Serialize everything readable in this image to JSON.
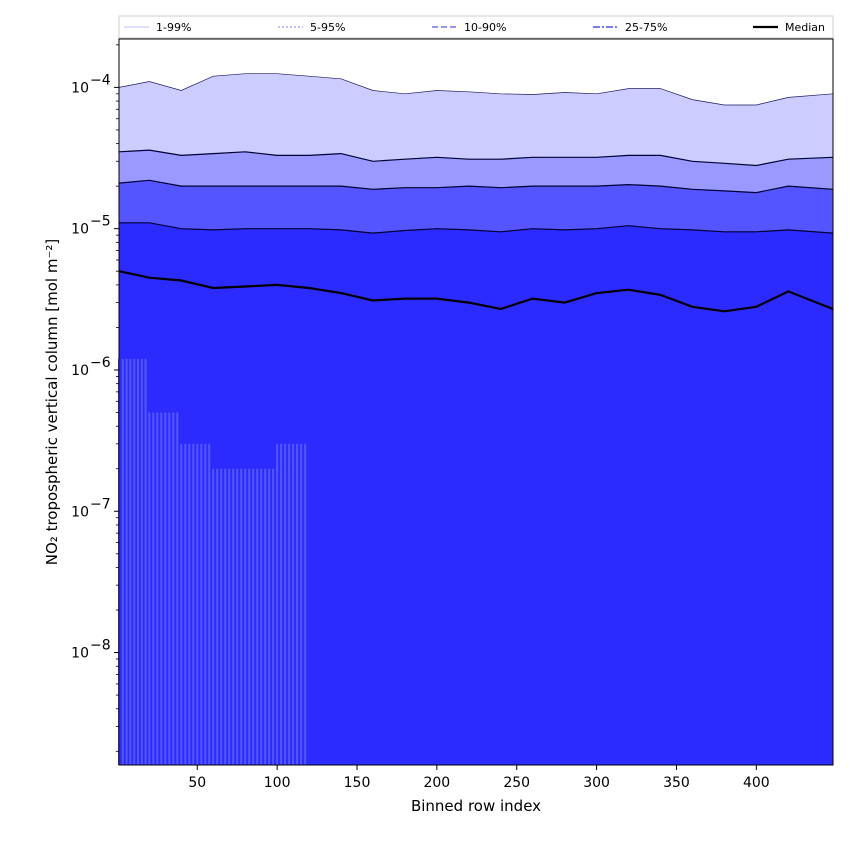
{
  "chart_data": {
    "type": "area",
    "xlabel": "Binned row index",
    "ylabel": "NO₂ tropospheric vertical column [mol m⁻²]",
    "yscale": "log",
    "xlim": [
      1,
      448
    ],
    "ylim": [
      1.6e-09,
      0.00022
    ],
    "x_ticks": [
      50,
      100,
      150,
      200,
      250,
      300,
      350,
      400
    ],
    "y_ticks": [
      {
        "value": 1e-08,
        "base": "10",
        "exp": "−8"
      },
      {
        "value": 1e-07,
        "base": "10",
        "exp": "−7"
      },
      {
        "value": 1e-06,
        "base": "10",
        "exp": "−6"
      },
      {
        "value": 1e-05,
        "base": "10",
        "exp": "−5"
      },
      {
        "value": 0.0001,
        "base": "10",
        "exp": "−4"
      }
    ],
    "legend_position": "top",
    "legend": [
      {
        "label": "1-99%",
        "style": "thin",
        "color": "#ccccff"
      },
      {
        "label": "5-95%",
        "style": "dotted",
        "color": "#9999ff"
      },
      {
        "label": "10-90%",
        "style": "dashed",
        "color": "#5555ff"
      },
      {
        "label": "25-75%",
        "style": "dashdot",
        "color": "#2b2bff"
      },
      {
        "label": "Median",
        "style": "solid",
        "color": "#000000"
      }
    ],
    "x": [
      1,
      20,
      40,
      60,
      80,
      100,
      120,
      140,
      160,
      180,
      200,
      220,
      240,
      260,
      280,
      300,
      320,
      340,
      360,
      380,
      400,
      420,
      448
    ],
    "bands": [
      {
        "name": "1-99%",
        "color": "#ccccff",
        "upper": [
          0.0001,
          0.00011,
          9.5e-05,
          0.00012,
          0.000125,
          0.000125,
          0.00012,
          0.000115,
          9.5e-05,
          9e-05,
          9.5e-05,
          9.3e-05,
          9e-05,
          8.9e-05,
          9.2e-05,
          9e-05,
          9.8e-05,
          9.8e-05,
          8.2e-05,
          7.5e-05,
          7.5e-05,
          8.5e-05,
          9e-05
        ],
        "lower": [
          1.2e-06,
          5e-07,
          3e-07,
          2e-07,
          2e-07,
          3e-07,
          null,
          null,
          null,
          null,
          null,
          null,
          null,
          null,
          null,
          null,
          null,
          null,
          null,
          null,
          null,
          null,
          null
        ]
      },
      {
        "name": "5-95%",
        "color": "#9999ff",
        "upper": [
          3.5e-05,
          3.6e-05,
          3.3e-05,
          3.4e-05,
          3.5e-05,
          3.3e-05,
          3.3e-05,
          3.4e-05,
          3e-05,
          3.1e-05,
          3.2e-05,
          3.1e-05,
          3.1e-05,
          3.2e-05,
          3.2e-05,
          3.2e-05,
          3.3e-05,
          3.3e-05,
          3e-05,
          2.9e-05,
          2.8e-05,
          3.1e-05,
          3.2e-05
        ]
      },
      {
        "name": "10-90%",
        "color": "#5555ff",
        "upper": [
          2.1e-05,
          2.2e-05,
          2e-05,
          2e-05,
          2e-05,
          2e-05,
          2e-05,
          2e-05,
          1.9e-05,
          1.95e-05,
          1.95e-05,
          2e-05,
          1.95e-05,
          2e-05,
          2e-05,
          2e-05,
          2.05e-05,
          2e-05,
          1.9e-05,
          1.85e-05,
          1.8e-05,
          2e-05,
          1.9e-05
        ]
      },
      {
        "name": "25-75%",
        "color": "#2b2bff",
        "upper": [
          1.1e-05,
          1.1e-05,
          1e-05,
          9.8e-06,
          1e-05,
          1e-05,
          1e-05,
          9.8e-06,
          9.3e-06,
          9.7e-06,
          1e-05,
          9.8e-06,
          9.5e-06,
          1e-05,
          9.8e-06,
          1e-05,
          1.05e-05,
          1e-05,
          9.8e-06,
          9.5e-06,
          9.5e-06,
          9.8e-06,
          9.3e-06
        ]
      }
    ],
    "median": [
      5e-06,
      4.5e-06,
      4.3e-06,
      3.8e-06,
      3.9e-06,
      4e-06,
      3.8e-06,
      3.5e-06,
      3.1e-06,
      3.2e-06,
      3.2e-06,
      3e-06,
      2.7e-06,
      3.2e-06,
      3e-06,
      3.5e-06,
      3.7e-06,
      3.4e-06,
      2.8e-06,
      2.6e-06,
      2.8e-06,
      3.6e-06,
      2.7e-06
    ]
  }
}
